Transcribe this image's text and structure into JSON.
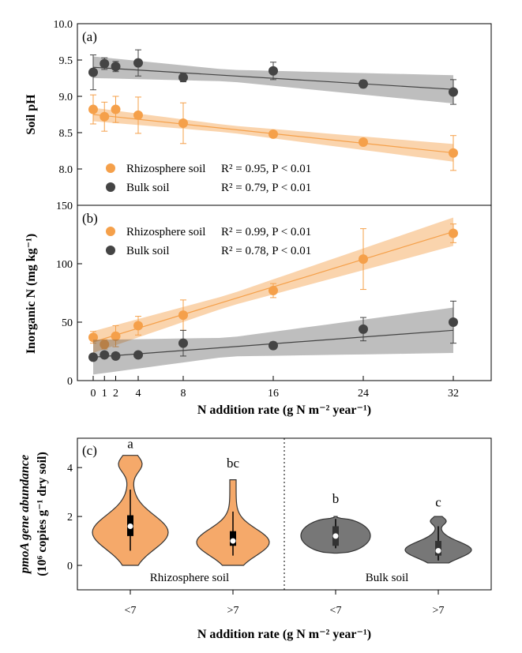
{
  "chart_data": [
    {
      "type": "scatter",
      "panel": "(a)",
      "ylabel": "Soil pH",
      "ylim": [
        7.5,
        10.0
      ],
      "yticks": [
        "8.0",
        "8.5",
        "9.0",
        "9.5",
        "10.0"
      ],
      "ytick_values": [
        8.0,
        8.5,
        9.0,
        9.5,
        10.0
      ],
      "series": [
        {
          "name": "Rhizosphere soil",
          "color": "#f5a04a",
          "x": [
            0,
            1,
            2,
            4,
            8,
            16,
            24,
            32
          ],
          "y": [
            8.82,
            8.72,
            8.82,
            8.74,
            8.63,
            8.48,
            8.37,
            8.22
          ],
          "err": [
            0.2,
            0.2,
            0.18,
            0.25,
            0.28,
            0.03,
            0.03,
            0.24
          ],
          "fit": [
            8.75,
            -0.0165
          ],
          "band": 0.05
        },
        {
          "name": "Bulk soil",
          "color": "#444444",
          "x": [
            0,
            1,
            2,
            4,
            8,
            16,
            24,
            32
          ],
          "y": [
            9.33,
            9.45,
            9.41,
            9.46,
            9.26,
            9.35,
            9.17,
            9.06
          ],
          "err": [
            0.24,
            0.08,
            0.07,
            0.18,
            0.06,
            0.12,
            0.05,
            0.17
          ],
          "fit": [
            9.4,
            -0.0095
          ],
          "band": 0.08
        }
      ],
      "legend": [
        {
          "series": "Rhizosphere soil",
          "stat": "R² = 0.95, P < 0.01"
        },
        {
          "series": "Bulk soil",
          "stat": "R² = 0.79, P < 0.01"
        }
      ]
    },
    {
      "type": "scatter",
      "panel": "(b)",
      "ylabel": "Inorganic N (mg kg⁻¹)",
      "xlabel": "N addition rate (g N m⁻² year⁻¹)",
      "ylim": [
        0,
        150
      ],
      "yticks": [
        "0",
        "50",
        "100",
        "150"
      ],
      "ytick_values": [
        0,
        50,
        100,
        150
      ],
      "xticks": [
        "0",
        "1",
        "2",
        "4",
        "8",
        "16",
        "24",
        "32"
      ],
      "xtick_values": [
        0,
        1,
        2,
        4,
        8,
        16,
        24,
        32
      ],
      "series": [
        {
          "name": "Rhizosphere soil",
          "color": "#f5a04a",
          "x": [
            0,
            1,
            2,
            4,
            8,
            16,
            24,
            32
          ],
          "y": [
            37,
            31,
            38,
            47,
            56,
            77,
            104,
            126
          ],
          "err": [
            5,
            4,
            9,
            8,
            13,
            6,
            26,
            8
          ],
          "fit": [
            33,
            2.95
          ],
          "band": 5
        },
        {
          "name": "Bulk soil",
          "color": "#444444",
          "x": [
            0,
            1,
            2,
            4,
            8,
            16,
            24,
            32
          ],
          "y": [
            20,
            22,
            21,
            22,
            32,
            30,
            44,
            50
          ],
          "err": [
            1,
            2,
            1,
            1,
            11,
            3,
            10,
            18
          ],
          "fit": [
            20,
            0.72
          ],
          "band": 8
        },
        {
          "name": "",
          "color": "",
          "x": [],
          "y": []
        }
      ],
      "legend": [
        {
          "series": "Rhizosphere soil",
          "stat": "R² = 0.99, P < 0.01"
        },
        {
          "series": "Bulk soil",
          "stat": "R² = 0.78, P < 0.01"
        }
      ]
    },
    {
      "type": "violin",
      "panel": "(c)",
      "ylabel_line1": "pmoA gene abundance",
      "ylabel_line2": "(10⁶ copies g⁻¹ dry soil)",
      "xlabel": "N addition rate (g N m⁻² year⁻¹)",
      "ylim": [
        -1,
        5.2
      ],
      "yticks": [
        "0",
        "2",
        "4"
      ],
      "ytick_values": [
        0,
        2,
        4
      ],
      "categories": [
        "<7",
        ">7",
        "<7",
        ">7"
      ],
      "groups": [
        "Rhizosphere soil",
        "Bulk soil"
      ],
      "letters": [
        "a",
        "bc",
        "b",
        "c"
      ],
      "colors": [
        "#f5a96a",
        "#f5a96a",
        "#777777",
        "#777777"
      ],
      "violins": [
        {
          "min": 0,
          "max": 4.5,
          "q1": 1.2,
          "median": 1.6,
          "q3": 2.05,
          "wlo": 0.6,
          "whi": 3.1,
          "letter_y": 4.8
        },
        {
          "min": 0,
          "max": 3.5,
          "q1": 0.8,
          "median": 1.0,
          "q3": 1.4,
          "wlo": 0.4,
          "whi": 2.2,
          "letter_y": 4.0
        },
        {
          "min": 0.5,
          "max": 2.0,
          "q1": 0.8,
          "median": 1.2,
          "q3": 1.6,
          "wlo": 0.7,
          "whi": 1.9,
          "letter_y": 2.55
        },
        {
          "min": 0.1,
          "max": 2.0,
          "q1": 0.4,
          "median": 0.6,
          "q3": 1.0,
          "wlo": 0.2,
          "whi": 1.6,
          "letter_y": 2.4
        }
      ]
    }
  ]
}
